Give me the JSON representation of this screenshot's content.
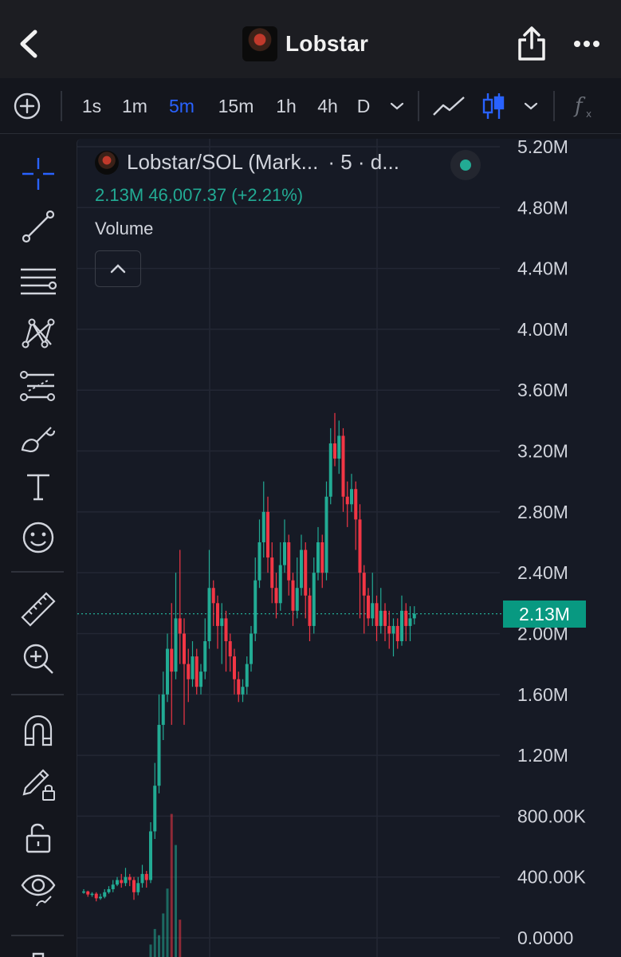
{
  "header": {
    "title": "Lobstar"
  },
  "toolbar": {
    "timeframes": [
      "1s",
      "1m",
      "5m",
      "15m",
      "1h",
      "4h",
      "D"
    ],
    "active_timeframe": "5m"
  },
  "legend": {
    "symbol": "Lobstar/SOL (Mark...",
    "interval": "· 5 · d...",
    "values": "2.13M  46,007.37 (+2.21%)",
    "volume_label": "Volume"
  },
  "price_badge": "2.13M",
  "colors": {
    "up": "#22ab94",
    "down": "#f23645",
    "accent": "#2962ff",
    "background": "#161a25"
  },
  "icons": [
    "add-circle-icon",
    "line-chart-icon",
    "candles-icon",
    "chevron-down-icon",
    "indicators-icon",
    "crosshair-icon",
    "trend-line-icon",
    "horizontal-lines-icon",
    "pattern-icon",
    "fib-icon",
    "brush-icon",
    "text-icon",
    "emoji-icon",
    "ruler-icon",
    "zoom-in-icon",
    "magnet-icon",
    "lock-pencil-icon",
    "unlock-icon",
    "eye-icon",
    "trash-icon"
  ],
  "chart_data": {
    "type": "candlestick",
    "y_ticks": [
      "5.20M",
      "4.80M",
      "4.40M",
      "4.00M",
      "3.60M",
      "3.20M",
      "2.80M",
      "2.40M",
      "2.00M",
      "1.60M",
      "1.20M",
      "800.00K",
      "400.00K",
      "0.0000"
    ],
    "ylim": [
      0,
      5200000
    ],
    "last_price": 2130000,
    "candles": [
      [
        300000,
        305000,
        320000,
        290000
      ],
      [
        305000,
        285000,
        310000,
        270000
      ],
      [
        285000,
        290000,
        300000,
        270000
      ],
      [
        290000,
        260000,
        300000,
        240000
      ],
      [
        260000,
        270000,
        290000,
        250000
      ],
      [
        270000,
        300000,
        320000,
        260000
      ],
      [
        300000,
        320000,
        340000,
        290000
      ],
      [
        320000,
        350000,
        380000,
        300000
      ],
      [
        350000,
        380000,
        400000,
        340000
      ],
      [
        380000,
        360000,
        420000,
        330000
      ],
      [
        360000,
        400000,
        460000,
        340000
      ],
      [
        400000,
        380000,
        420000,
        340000
      ],
      [
        380000,
        300000,
        400000,
        250000
      ],
      [
        300000,
        360000,
        400000,
        280000
      ],
      [
        360000,
        420000,
        480000,
        330000
      ],
      [
        420000,
        380000,
        440000,
        330000
      ],
      [
        380000,
        700000,
        760000,
        360000
      ],
      [
        700000,
        1000000,
        1150000,
        650000
      ],
      [
        1000000,
        1400000,
        1600000,
        950000
      ],
      [
        1400000,
        1600000,
        1750000,
        1300000
      ],
      [
        1600000,
        1900000,
        2000000,
        1550000
      ],
      [
        1900000,
        1750000,
        2200000,
        1400000
      ],
      [
        1750000,
        2100000,
        2400000,
        1700000
      ],
      [
        2100000,
        2000000,
        2550000,
        1800000
      ],
      [
        2000000,
        1800000,
        2100000,
        1400000
      ],
      [
        1800000,
        1700000,
        1900000,
        1550000
      ],
      [
        1700000,
        1850000,
        1950000,
        1650000
      ],
      [
        1850000,
        1650000,
        1900000,
        1600000
      ],
      [
        1650000,
        1750000,
        1800000,
        1600000
      ],
      [
        1750000,
        1950000,
        2100000,
        1700000
      ],
      [
        1950000,
        2300000,
        2550000,
        1900000
      ],
      [
        2300000,
        2200000,
        2350000,
        2050000
      ],
      [
        2200000,
        2050000,
        2250000,
        1900000
      ],
      [
        2050000,
        2100000,
        2200000,
        1800000
      ],
      [
        2100000,
        1950000,
        2150000,
        1750000
      ],
      [
        1950000,
        1850000,
        2000000,
        1750000
      ],
      [
        1850000,
        1700000,
        1900000,
        1600000
      ],
      [
        1700000,
        1600000,
        1750000,
        1550000
      ],
      [
        1600000,
        1650000,
        1700000,
        1550000
      ],
      [
        1650000,
        1800000,
        1850000,
        1600000
      ],
      [
        1800000,
        2000000,
        2050000,
        1750000
      ],
      [
        2000000,
        2350000,
        2500000,
        1950000
      ],
      [
        2350000,
        2600000,
        2750000,
        2300000
      ],
      [
        2600000,
        2800000,
        3000000,
        2500000
      ],
      [
        2800000,
        2500000,
        2900000,
        2400000
      ],
      [
        2500000,
        2300000,
        2600000,
        2200000
      ],
      [
        2300000,
        2200000,
        2400000,
        2100000
      ],
      [
        2200000,
        2450000,
        2600000,
        2150000
      ],
      [
        2450000,
        2600000,
        2750000,
        2400000
      ],
      [
        2600000,
        2350000,
        2650000,
        2250000
      ],
      [
        2350000,
        2150000,
        2400000,
        2050000
      ],
      [
        2150000,
        2300000,
        2500000,
        2100000
      ],
      [
        2300000,
        2550000,
        2650000,
        2250000
      ],
      [
        2550000,
        2250000,
        2600000,
        2100000
      ],
      [
        2250000,
        2050000,
        2300000,
        1950000
      ],
      [
        2050000,
        2400000,
        2500000,
        2000000
      ],
      [
        2400000,
        2600000,
        2700000,
        2350000
      ],
      [
        2600000,
        2400000,
        2650000,
        2300000
      ],
      [
        2400000,
        2900000,
        3000000,
        2350000
      ],
      [
        2900000,
        3250000,
        3350000,
        2850000
      ],
      [
        3250000,
        3150000,
        3450000,
        3100000
      ],
      [
        3150000,
        3300000,
        3400000,
        3050000
      ],
      [
        3300000,
        2900000,
        3350000,
        2800000
      ],
      [
        2900000,
        2850000,
        3000000,
        2700000
      ],
      [
        2850000,
        2950000,
        3050000,
        2800000
      ],
      [
        2950000,
        2750000,
        3000000,
        2550000
      ],
      [
        2750000,
        2400000,
        2850000,
        2100000
      ],
      [
        2400000,
        2250000,
        2450000,
        2000000
      ],
      [
        2250000,
        2100000,
        2300000,
        2050000
      ],
      [
        2100000,
        2200000,
        2400000,
        2050000
      ],
      [
        2200000,
        2050000,
        2250000,
        1950000
      ],
      [
        2050000,
        2150000,
        2300000,
        2000000
      ],
      [
        2150000,
        2050000,
        2200000,
        1950000
      ],
      [
        2050000,
        2000000,
        2150000,
        1900000
      ],
      [
        2000000,
        2050000,
        2100000,
        1850000
      ],
      [
        2050000,
        1950000,
        2100000,
        1900000
      ],
      [
        1950000,
        2150000,
        2250000,
        1920000
      ],
      [
        2150000,
        2050000,
        2200000,
        1950000
      ],
      [
        2050000,
        2100000,
        2180000,
        1950000
      ],
      [
        2100000,
        2130000,
        2180000,
        2060000
      ]
    ],
    "volumes": [
      0,
      0,
      0,
      0,
      0,
      0,
      0,
      0,
      0,
      0,
      0,
      0,
      0,
      0,
      0,
      0,
      20,
      45,
      35,
      70,
      110,
      230,
      180,
      60,
      0,
      0,
      0,
      0,
      0,
      0,
      0,
      0,
      0,
      0,
      0,
      0,
      0,
      0,
      0,
      0,
      0,
      0,
      0,
      0,
      0,
      0,
      0,
      0,
      0,
      0,
      0,
      0,
      0,
      0,
      0,
      0,
      0,
      0,
      0,
      0,
      0,
      0,
      0,
      0,
      0,
      0,
      0,
      0,
      0,
      0,
      0,
      0,
      0,
      0,
      0,
      0,
      0,
      0,
      0,
      0
    ]
  }
}
